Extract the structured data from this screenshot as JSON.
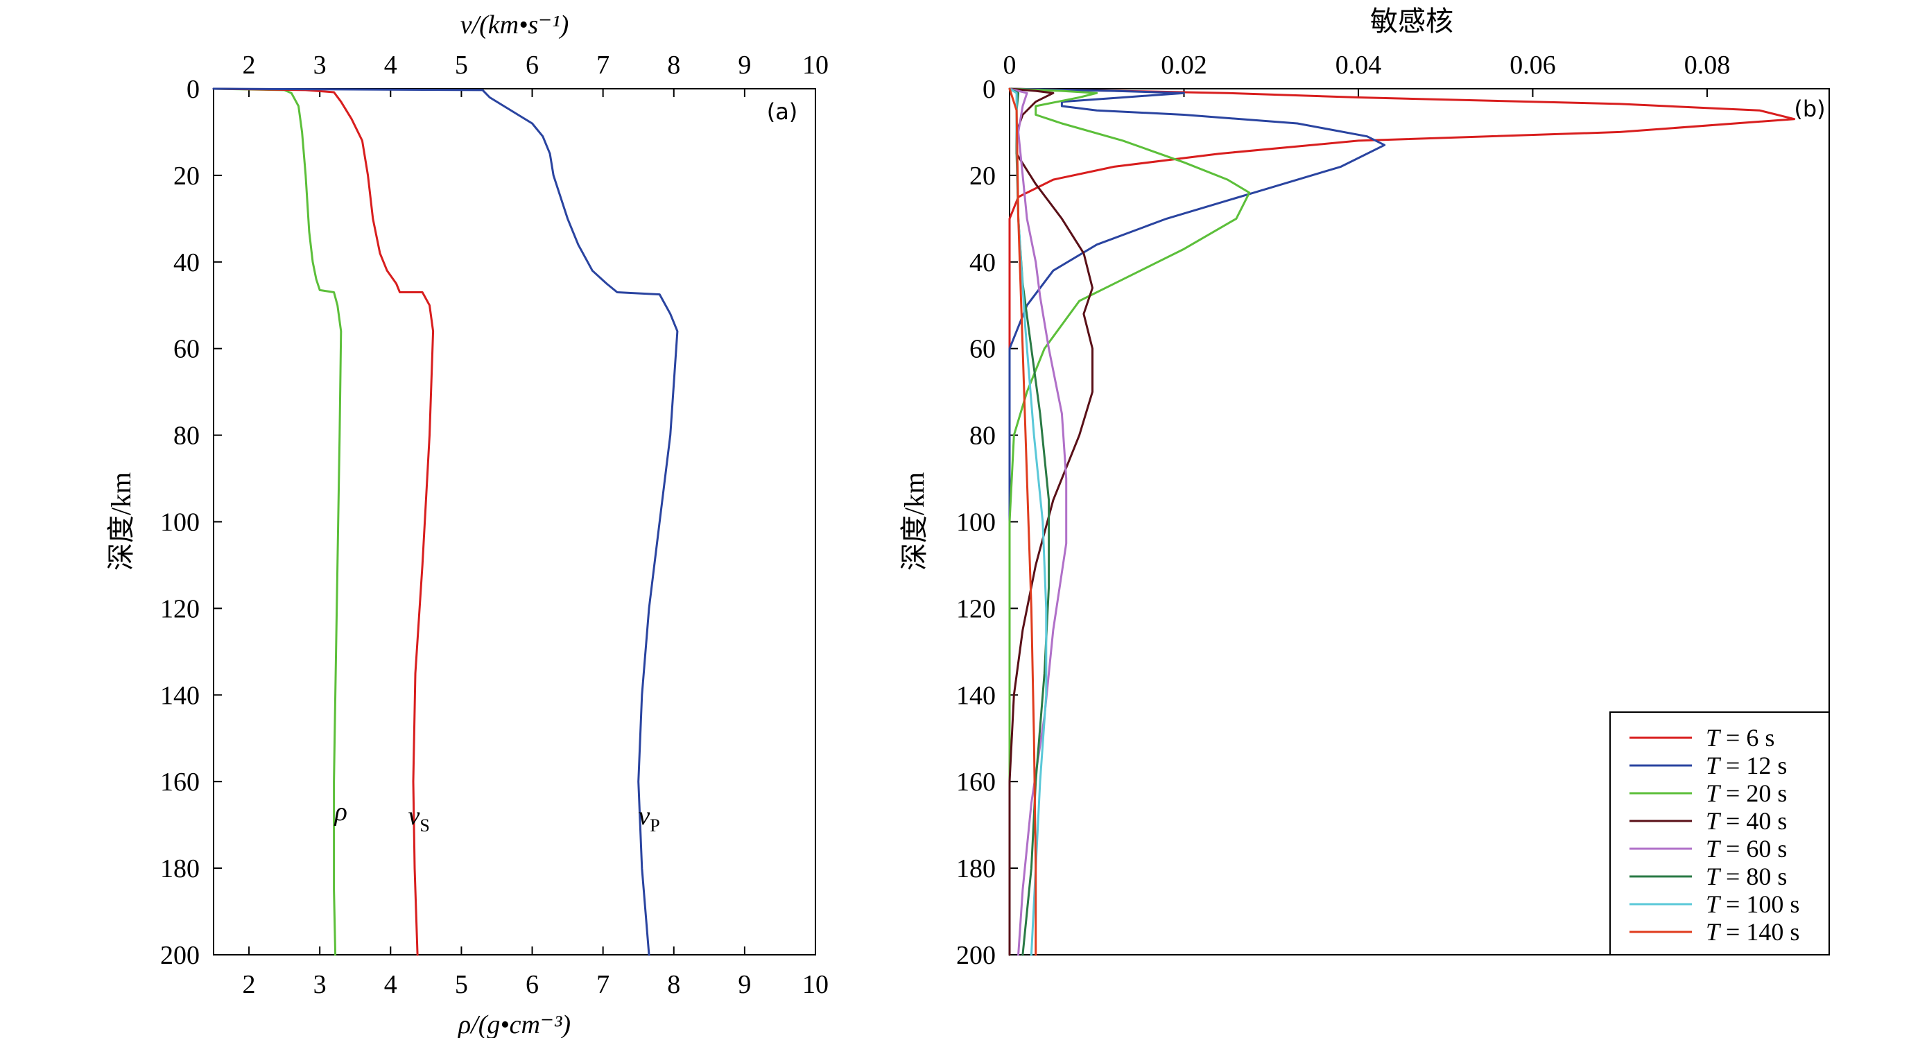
{
  "chart_data": [
    {
      "type": "line",
      "panel_label": "(a)",
      "xlabel_top": "v/(km•s⁻¹)",
      "xlabel_bottom": "ρ/(g•cm⁻³)",
      "ylabel": "深度/km",
      "xlim": [
        1.5,
        10
      ],
      "ylim": [
        0,
        200
      ],
      "y_inverted": true,
      "x_ticks": [
        "2",
        "3",
        "4",
        "5",
        "6",
        "7",
        "8",
        "9",
        "10"
      ],
      "y_ticks": [
        "0",
        "20",
        "40",
        "60",
        "80",
        "100",
        "120",
        "140",
        "160",
        "180",
        "200"
      ],
      "series": [
        {
          "name": "ρ",
          "color": "#5cbf3a",
          "points": [
            [
              1.5,
              0
            ],
            [
              2.5,
              0.3
            ],
            [
              2.6,
              1
            ],
            [
              2.7,
              4
            ],
            [
              2.75,
              10
            ],
            [
              2.8,
              20
            ],
            [
              2.85,
              33
            ],
            [
              2.9,
              40
            ],
            [
              2.95,
              44
            ],
            [
              3.0,
              46.5
            ],
            [
              3.2,
              47
            ],
            [
              3.25,
              50
            ],
            [
              3.3,
              56
            ],
            [
              3.28,
              80
            ],
            [
              3.25,
              110
            ],
            [
              3.22,
              140
            ],
            [
              3.2,
              160
            ],
            [
              3.2,
              172
            ],
            [
              3.2,
              185
            ],
            [
              3.22,
              200
            ]
          ]
        },
        {
          "name": "vS",
          "color": "#d81e1e",
          "points": [
            [
              1.5,
              0
            ],
            [
              2.8,
              0.3
            ],
            [
              3.2,
              0.8
            ],
            [
              3.3,
              3
            ],
            [
              3.45,
              7
            ],
            [
              3.6,
              12
            ],
            [
              3.68,
              20
            ],
            [
              3.75,
              30
            ],
            [
              3.85,
              38
            ],
            [
              3.95,
              42
            ],
            [
              4.08,
              45
            ],
            [
              4.13,
              47
            ],
            [
              4.45,
              47
            ],
            [
              4.55,
              50
            ],
            [
              4.6,
              56
            ],
            [
              4.55,
              80
            ],
            [
              4.45,
              110
            ],
            [
              4.35,
              135
            ],
            [
              4.32,
              160
            ],
            [
              4.34,
              180
            ],
            [
              4.38,
              200
            ]
          ]
        },
        {
          "name": "vP",
          "color": "#2a44a0",
          "points": [
            [
              1.5,
              0
            ],
            [
              5.3,
              0.3
            ],
            [
              5.4,
              2
            ],
            [
              5.6,
              4
            ],
            [
              5.8,
              6
            ],
            [
              6.0,
              8
            ],
            [
              6.15,
              11
            ],
            [
              6.25,
              15
            ],
            [
              6.3,
              20
            ],
            [
              6.4,
              25
            ],
            [
              6.5,
              30
            ],
            [
              6.65,
              36
            ],
            [
              6.85,
              42
            ],
            [
              7.05,
              45
            ],
            [
              7.2,
              47
            ],
            [
              7.8,
              47.5
            ],
            [
              7.95,
              52
            ],
            [
              8.05,
              56
            ],
            [
              7.95,
              80
            ],
            [
              7.8,
              100
            ],
            [
              7.65,
              120
            ],
            [
              7.55,
              140
            ],
            [
              7.5,
              160
            ],
            [
              7.55,
              180
            ],
            [
              7.65,
              200
            ]
          ]
        }
      ],
      "curve_labels": [
        {
          "text": "ρ",
          "x": 3.3,
          "y": 167
        },
        {
          "text": "vS",
          "x": 4.4,
          "y": 168
        },
        {
          "text": "vP",
          "x": 7.65,
          "y": 168
        }
      ]
    },
    {
      "type": "line",
      "panel_label": "(b)",
      "xlabel_top": "敏感核",
      "ylabel": "深度/km",
      "xlim": [
        0,
        0.094
      ],
      "ylim": [
        0,
        200
      ],
      "y_inverted": true,
      "x_ticks": [
        "0",
        "0.02",
        "0.04",
        "0.06",
        "0.08"
      ],
      "x_tick_values": [
        0,
        0.02,
        0.04,
        0.06,
        0.08
      ],
      "y_ticks": [
        "0",
        "20",
        "40",
        "60",
        "80",
        "100",
        "120",
        "140",
        "160",
        "180",
        "200"
      ],
      "legend": {
        "position": "bottom-right",
        "entries": [
          "T = 6 s",
          "T = 12 s",
          "T = 20 s",
          "T = 40 s",
          "T = 60 s",
          "T = 80 s",
          "T = 100 s",
          "T = 140 s"
        ]
      },
      "series": [
        {
          "name": "T = 6 s",
          "color": "#d81e1e",
          "points": [
            [
              0.0,
              0
            ],
            [
              0.025,
              1
            ],
            [
              0.04,
              2
            ],
            [
              0.07,
              3.5
            ],
            [
              0.086,
              5
            ],
            [
              0.09,
              7
            ],
            [
              0.07,
              10
            ],
            [
              0.04,
              12
            ],
            [
              0.024,
              15
            ],
            [
              0.012,
              18
            ],
            [
              0.005,
              21
            ],
            [
              0.001,
              25
            ],
            [
              0.0,
              30
            ],
            [
              0.0,
              200
            ]
          ]
        },
        {
          "name": "T = 12 s",
          "color": "#2a44a0",
          "points": [
            [
              0.0,
              0
            ],
            [
              0.012,
              0.5
            ],
            [
              0.02,
              1
            ],
            [
              0.013,
              2
            ],
            [
              0.006,
              3
            ],
            [
              0.006,
              4
            ],
            [
              0.01,
              5
            ],
            [
              0.02,
              6
            ],
            [
              0.033,
              8
            ],
            [
              0.041,
              11
            ],
            [
              0.043,
              13
            ],
            [
              0.038,
              18
            ],
            [
              0.028,
              24
            ],
            [
              0.018,
              30
            ],
            [
              0.01,
              36
            ],
            [
              0.005,
              42
            ],
            [
              0.002,
              50
            ],
            [
              0.0,
              60
            ],
            [
              0.0,
              200
            ]
          ]
        },
        {
          "name": "T = 20 s",
          "color": "#5cbf3a",
          "points": [
            [
              0.0,
              0
            ],
            [
              0.006,
              0.5
            ],
            [
              0.01,
              1
            ],
            [
              0.008,
              2
            ],
            [
              0.003,
              4
            ],
            [
              0.003,
              6
            ],
            [
              0.006,
              8
            ],
            [
              0.013,
              12
            ],
            [
              0.02,
              17
            ],
            [
              0.025,
              21
            ],
            [
              0.0275,
              24
            ],
            [
              0.026,
              30
            ],
            [
              0.02,
              37
            ],
            [
              0.013,
              44
            ],
            [
              0.008,
              49
            ],
            [
              0.004,
              60
            ],
            [
              0.002,
              70
            ],
            [
              0.0005,
              80
            ],
            [
              0.0,
              100
            ],
            [
              0.0,
              200
            ]
          ]
        },
        {
          "name": "T = 40 s",
          "color": "#5a1018",
          "points": [
            [
              0.0,
              0
            ],
            [
              0.003,
              0.5
            ],
            [
              0.005,
              1
            ],
            [
              0.003,
              3
            ],
            [
              0.0015,
              6
            ],
            [
              0.0008,
              10
            ],
            [
              0.0008,
              15
            ],
            [
              0.003,
              22
            ],
            [
              0.006,
              30
            ],
            [
              0.0085,
              38
            ],
            [
              0.0095,
              46
            ],
            [
              0.0085,
              52
            ],
            [
              0.0095,
              60
            ],
            [
              0.0095,
              70
            ],
            [
              0.008,
              80
            ],
            [
              0.005,
              95
            ],
            [
              0.003,
              110
            ],
            [
              0.0015,
              125
            ],
            [
              0.0005,
              140
            ],
            [
              0.0,
              160
            ],
            [
              0.0,
              200
            ]
          ]
        },
        {
          "name": "T = 60 s",
          "color": "#b070c8",
          "points": [
            [
              0.0,
              0
            ],
            [
              0.002,
              1
            ],
            [
              0.0015,
              4
            ],
            [
              0.001,
              10
            ],
            [
              0.0015,
              20
            ],
            [
              0.002,
              30
            ],
            [
              0.003,
              40
            ],
            [
              0.0035,
              48
            ],
            [
              0.0045,
              60
            ],
            [
              0.006,
              75
            ],
            [
              0.0065,
              90
            ],
            [
              0.0065,
              105
            ],
            [
              0.005,
              125
            ],
            [
              0.004,
              145
            ],
            [
              0.0025,
              165
            ],
            [
              0.0015,
              185
            ],
            [
              0.001,
              200
            ]
          ]
        },
        {
          "name": "T = 80 s",
          "color": "#2a7a45",
          "points": [
            [
              0.0,
              0
            ],
            [
              0.001,
              1
            ],
            [
              0.0008,
              5
            ],
            [
              0.0008,
              15
            ],
            [
              0.001,
              30
            ],
            [
              0.0015,
              45
            ],
            [
              0.0025,
              60
            ],
            [
              0.0035,
              75
            ],
            [
              0.0045,
              95
            ],
            [
              0.0045,
              115
            ],
            [
              0.004,
              135
            ],
            [
              0.003,
              160
            ],
            [
              0.0025,
              180
            ],
            [
              0.0015,
              200
            ]
          ]
        },
        {
          "name": "T = 100 s",
          "color": "#5ac8d8",
          "points": [
            [
              0.0,
              0
            ],
            [
              0.0008,
              1
            ],
            [
              0.0008,
              10
            ],
            [
              0.001,
              30
            ],
            [
              0.0018,
              55
            ],
            [
              0.0028,
              80
            ],
            [
              0.0038,
              100
            ],
            [
              0.0042,
              120
            ],
            [
              0.0042,
              140
            ],
            [
              0.0035,
              160
            ],
            [
              0.003,
              180
            ],
            [
              0.0025,
              200
            ]
          ]
        },
        {
          "name": "T = 140 s",
          "color": "#e03c1e",
          "points": [
            [
              0.0,
              0
            ],
            [
              0.0008,
              5
            ],
            [
              0.001,
              30
            ],
            [
              0.0015,
              60
            ],
            [
              0.002,
              90
            ],
            [
              0.0025,
              120
            ],
            [
              0.0028,
              150
            ],
            [
              0.003,
              180
            ],
            [
              0.003,
              200
            ]
          ]
        }
      ]
    }
  ]
}
